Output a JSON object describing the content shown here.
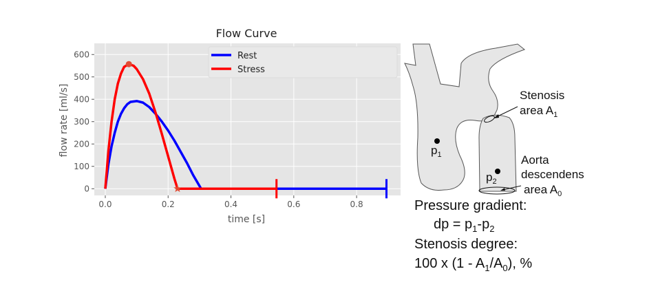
{
  "chart_data": {
    "type": "line",
    "title": "Flow Curve",
    "xlabel": "time [s]",
    "ylabel": "flow rate [ml/s]",
    "xlim": [
      -0.035,
      0.94
    ],
    "ylim": [
      -30,
      650
    ],
    "xticks": [
      0.0,
      0.2,
      0.4,
      0.6,
      0.8
    ],
    "xtick_labels": [
      "0.0",
      "0.2",
      "0.4",
      "0.6",
      "0.8"
    ],
    "yticks": [
      0,
      100,
      200,
      300,
      400,
      500,
      600
    ],
    "ytick_labels": [
      "0",
      "100",
      "200",
      "300",
      "400",
      "500",
      "600"
    ],
    "grid": true,
    "legend_position": "top-right",
    "style": "ggplot",
    "series": [
      {
        "name": "Rest",
        "color": "#0000ff",
        "x": [
          0,
          0.01,
          0.02,
          0.03,
          0.04,
          0.05,
          0.06,
          0.07,
          0.08,
          0.1,
          0.12,
          0.14,
          0.16,
          0.18,
          0.2,
          0.22,
          0.24,
          0.26,
          0.28,
          0.305,
          0.895
        ],
        "y": [
          0,
          110,
          190,
          250,
          300,
          335,
          360,
          378,
          388,
          392,
          385,
          365,
          335,
          300,
          260,
          215,
          165,
          115,
          60,
          0,
          0
        ],
        "end_marker": {
          "x": 0.895,
          "y": 0,
          "shape": "vertical-bar"
        }
      },
      {
        "name": "Stress",
        "color": "#ff0000",
        "x": [
          0,
          0.01,
          0.02,
          0.03,
          0.04,
          0.05,
          0.06,
          0.075,
          0.09,
          0.1,
          0.12,
          0.14,
          0.16,
          0.18,
          0.2,
          0.22,
          0.23,
          0.545
        ],
        "y": [
          0,
          170,
          300,
          400,
          470,
          515,
          545,
          557,
          550,
          535,
          490,
          425,
          340,
          245,
          145,
          45,
          0,
          0
        ],
        "end_marker": {
          "x": 0.545,
          "y": 0,
          "shape": "vertical-bar"
        },
        "peak_marker": {
          "x": 0.075,
          "y": 557,
          "shape": "circle",
          "color": "#e24a33"
        },
        "zero_marker": {
          "x": 0.23,
          "y": 0,
          "shape": "star",
          "color": "#e24a33"
        }
      }
    ]
  },
  "diagram": {
    "fill": "#e6e6e6",
    "p1": {
      "base": "p",
      "sub": "1"
    },
    "p2": {
      "base": "p",
      "sub": "2"
    },
    "stenosis_line1": "Stenosis",
    "stenosis_line2": {
      "base": "area A",
      "sub": "1"
    },
    "aorta_line1": "Aorta",
    "aorta_line2": "descendens",
    "aorta_line3": {
      "base": "area A",
      "sub": "0"
    }
  },
  "formulas": {
    "pressure_title": "Pressure gradient:",
    "pressure_eq": {
      "a": "dp = p",
      "s1": "1",
      "b": "-p",
      "s2": "2"
    },
    "stenosis_title": "Stenosis degree:",
    "stenosis_eq": {
      "a": "100 x (1 - A",
      "s1": "1",
      "b": "/A",
      "s2": "0",
      "c": "), %"
    }
  }
}
